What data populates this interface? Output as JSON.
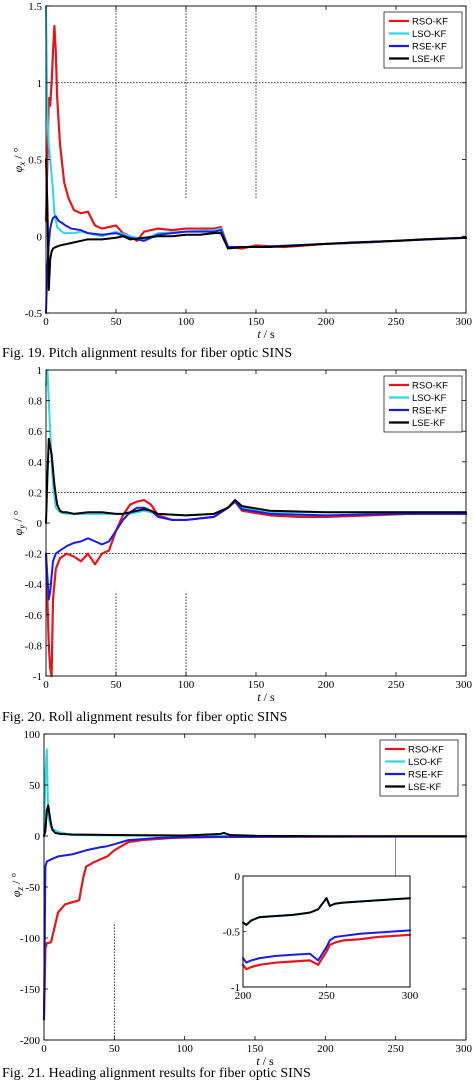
{
  "captions": [
    "Fig. 19. Pitch alignment results for fiber optic SINS",
    "Fig. 20. Roll alignment results for fiber optic SINS",
    "Fig. 21. Heading alignment results for fiber optic SINS"
  ],
  "colors": {
    "RSO-KF": "#e8141c",
    "LSO-KF": "#2fd8e8",
    "RSE-KF": "#1c1ce0",
    "LSE-KF": "#000000"
  },
  "chart_data": [
    {
      "type": "line",
      "title": "",
      "xlabel": "t",
      "xunit": "s",
      "ylabel": "φx",
      "yunit": "°",
      "xlim": [
        0,
        300
      ],
      "ylim": [
        -0.5,
        1.5
      ],
      "xticks": [
        "0",
        "50",
        "100",
        "150",
        "200",
        "250",
        "300"
      ],
      "yticks": [
        "-0.5",
        "0",
        "0.5",
        "1",
        "1.5"
      ],
      "legend_position": "top-right",
      "reference_lines": [
        {
          "orientation": "horizontal",
          "value": 1
        },
        {
          "orientation": "vertical",
          "value": 50,
          "range": [
            0.25,
            1.5
          ]
        },
        {
          "orientation": "vertical",
          "value": 100,
          "range": [
            0.25,
            1.5
          ]
        },
        {
          "orientation": "vertical",
          "value": 150,
          "range": [
            0.25,
            1.5
          ]
        }
      ],
      "series": [
        {
          "name": "RSO-KF",
          "x": [
            0,
            1,
            2,
            3,
            4,
            5,
            6,
            7,
            8,
            10,
            13,
            16,
            20,
            25,
            30,
            35,
            40,
            50,
            55,
            60,
            65,
            70,
            80,
            90,
            100,
            110,
            120,
            125,
            130,
            140,
            150,
            170,
            200,
            230,
            250,
            270,
            300
          ],
          "y": [
            0.1,
            0.5,
            0.9,
            0.85,
            1.0,
            1.2,
            1.37,
            1.2,
            0.9,
            0.6,
            0.35,
            0.25,
            0.17,
            0.15,
            0.16,
            0.07,
            0.05,
            0.07,
            0.02,
            0.0,
            -0.03,
            0.03,
            0.05,
            0.04,
            0.05,
            0.05,
            0.05,
            0.06,
            -0.07,
            -0.08,
            -0.06,
            -0.07,
            -0.05,
            -0.04,
            -0.03,
            -0.02,
            -0.01
          ]
        },
        {
          "name": "LSO-KF",
          "x": [
            0,
            1,
            2,
            3,
            4,
            5,
            6,
            8,
            10,
            13,
            16,
            20,
            25,
            30,
            40,
            50,
            60,
            70,
            80,
            100,
            120,
            125,
            130,
            150,
            200,
            250,
            300
          ],
          "y": [
            1.5,
            0.8,
            0.6,
            0.5,
            0.4,
            0.3,
            0.15,
            0.06,
            0.04,
            0.02,
            0.02,
            0.02,
            0.03,
            0.02,
            0.0,
            0.03,
            0.0,
            -0.02,
            0.02,
            0.03,
            0.04,
            0.05,
            -0.07,
            -0.07,
            -0.05,
            -0.03,
            -0.01
          ]
        },
        {
          "name": "RSE-KF",
          "x": [
            0,
            1,
            2,
            3,
            4,
            5,
            7,
            9,
            11,
            14,
            18,
            25,
            30,
            40,
            50,
            60,
            70,
            80,
            100,
            120,
            125,
            130,
            150,
            200,
            250,
            300
          ],
          "y": [
            -0.5,
            -0.2,
            -0.05,
            0.05,
            0.09,
            0.12,
            0.13,
            0.1,
            0.09,
            0.07,
            0.05,
            0.04,
            0.02,
            0.01,
            0.02,
            -0.01,
            -0.03,
            0.01,
            0.03,
            0.03,
            0.04,
            -0.07,
            -0.07,
            -0.05,
            -0.03,
            -0.01
          ]
        },
        {
          "name": "LSE-KF",
          "x": [
            0,
            1,
            2,
            3,
            4,
            5,
            7,
            10,
            15,
            20,
            30,
            40,
            50,
            55,
            60,
            70,
            80,
            90,
            100,
            110,
            120,
            125,
            130,
            140,
            160,
            180,
            200,
            220,
            250,
            270,
            300
          ],
          "y": [
            0.5,
            0.2,
            -0.35,
            -0.15,
            -0.1,
            -0.08,
            -0.07,
            -0.06,
            -0.05,
            -0.04,
            -0.02,
            -0.02,
            -0.01,
            0.0,
            -0.02,
            -0.01,
            0.0,
            0.0,
            0.01,
            0.01,
            0.02,
            0.02,
            -0.08,
            -0.07,
            -0.07,
            -0.06,
            -0.05,
            -0.04,
            -0.03,
            -0.02,
            -0.01
          ]
        }
      ]
    },
    {
      "type": "line",
      "title": "",
      "xlabel": "t",
      "xunit": "s",
      "ylabel": "φy",
      "yunit": "°",
      "xlim": [
        0,
        300
      ],
      "ylim": [
        -1,
        1
      ],
      "xticks": [
        "0",
        "50",
        "100",
        "150",
        "200",
        "250",
        "300"
      ],
      "yticks": [
        "-1",
        "-0.8",
        "-0.6",
        "-0.4",
        "-0.2",
        "0",
        "0.2",
        "0.4",
        "0.6",
        "0.8",
        "1"
      ],
      "legend_position": "top-right",
      "reference_lines": [
        {
          "orientation": "horizontal",
          "value": 0.2
        },
        {
          "orientation": "horizontal",
          "value": -0.2
        },
        {
          "orientation": "vertical",
          "value": 50,
          "range": [
            -1,
            -0.45
          ]
        },
        {
          "orientation": "vertical",
          "value": 100,
          "range": [
            -1,
            -0.45
          ]
        }
      ],
      "series": [
        {
          "name": "RSO-KF",
          "x": [
            0,
            1,
            2,
            3,
            4,
            5,
            7,
            10,
            15,
            20,
            25,
            30,
            35,
            40,
            45,
            50,
            55,
            60,
            65,
            70,
            75,
            80,
            90,
            100,
            110,
            120,
            130,
            135,
            140,
            160,
            180,
            200,
            230,
            260,
            300
          ],
          "y": [
            -0.2,
            -0.5,
            -0.8,
            -0.95,
            -1.0,
            -0.5,
            -0.3,
            -0.23,
            -0.2,
            -0.22,
            -0.25,
            -0.2,
            -0.27,
            -0.2,
            -0.18,
            -0.05,
            0.05,
            0.12,
            0.14,
            0.15,
            0.12,
            0.05,
            0.02,
            0.02,
            0.03,
            0.04,
            0.1,
            0.14,
            0.08,
            0.05,
            0.04,
            0.04,
            0.05,
            0.06,
            0.06
          ]
        },
        {
          "name": "LSO-KF",
          "x": [
            0,
            1,
            2,
            3,
            4,
            5,
            7,
            10,
            15,
            20,
            30,
            40,
            50,
            60,
            70,
            80,
            100,
            120,
            130,
            135,
            140,
            160,
            200,
            250,
            300
          ],
          "y": [
            0.9,
            1.0,
            0.8,
            0.6,
            0.4,
            0.25,
            0.1,
            0.07,
            0.06,
            0.06,
            0.06,
            0.06,
            0.06,
            0.06,
            0.08,
            0.06,
            0.05,
            0.06,
            0.1,
            0.14,
            0.1,
            0.07,
            0.07,
            0.07,
            0.07
          ]
        },
        {
          "name": "RSE-KF",
          "x": [
            0,
            1,
            2,
            3,
            4,
            5,
            7,
            10,
            15,
            20,
            25,
            30,
            35,
            40,
            45,
            50,
            55,
            60,
            65,
            70,
            75,
            80,
            90,
            100,
            110,
            120,
            130,
            135,
            140,
            160,
            200,
            250,
            300
          ],
          "y": [
            -0.2,
            -0.35,
            -0.5,
            -0.45,
            -0.35,
            -0.25,
            -0.2,
            -0.18,
            -0.15,
            -0.13,
            -0.12,
            -0.1,
            -0.12,
            -0.14,
            -0.12,
            -0.05,
            0.02,
            0.07,
            0.1,
            0.1,
            0.08,
            0.04,
            0.02,
            0.02,
            0.03,
            0.04,
            0.1,
            0.14,
            0.09,
            0.06,
            0.05,
            0.06,
            0.06
          ]
        },
        {
          "name": "LSE-KF",
          "x": [
            0,
            1,
            2,
            3,
            4,
            5,
            6,
            7,
            8,
            10,
            12,
            15,
            20,
            30,
            40,
            50,
            55,
            60,
            65,
            70,
            75,
            80,
            100,
            120,
            130,
            135,
            140,
            160,
            200,
            250,
            300
          ],
          "y": [
            0.0,
            0.3,
            0.55,
            0.5,
            0.45,
            0.35,
            0.25,
            0.18,
            0.12,
            0.08,
            0.07,
            0.07,
            0.06,
            0.07,
            0.07,
            0.06,
            0.06,
            0.07,
            0.08,
            0.09,
            0.08,
            0.06,
            0.05,
            0.06,
            0.1,
            0.15,
            0.11,
            0.08,
            0.07,
            0.07,
            0.07
          ]
        }
      ]
    },
    {
      "type": "line",
      "title": "",
      "xlabel": "t",
      "xunit": "s",
      "ylabel": "φz",
      "yunit": "°",
      "xlim": [
        0,
        300
      ],
      "ylim": [
        -200,
        100
      ],
      "xticks": [
        "0",
        "50",
        "100",
        "150",
        "200",
        "250",
        "300"
      ],
      "yticks": [
        "-200",
        "-150",
        "-100",
        "-50",
        "0",
        "50",
        "100"
      ],
      "legend_position": "top-right",
      "reference_lines": [
        {
          "orientation": "vertical",
          "value": 50,
          "range": [
            -200,
            -85
          ]
        }
      ],
      "series": [
        {
          "name": "RSO-KF",
          "x": [
            0,
            1,
            2,
            3,
            5,
            10,
            15,
            20,
            25,
            28,
            30,
            35,
            45,
            50,
            55,
            60,
            70,
            80,
            90,
            100,
            120,
            150,
            200,
            250,
            300
          ],
          "y": [
            -180,
            -110,
            -105,
            -105,
            -104,
            -75,
            -67,
            -65,
            -63,
            -40,
            -30,
            -26,
            -20,
            -14,
            -10,
            -6,
            -4,
            -3,
            -2,
            -1.5,
            -1,
            -0.8,
            -0.6,
            -0.55,
            -0.5
          ]
        },
        {
          "name": "LSO-KF",
          "x": [
            0,
            1,
            2,
            3,
            5,
            10,
            20,
            50,
            100,
            150,
            200,
            250,
            300
          ],
          "y": [
            0,
            60,
            85,
            20,
            8,
            4,
            1,
            0.5,
            0.3,
            0.2,
            -0.3,
            -0.25,
            -0.2
          ]
        },
        {
          "name": "RSE-KF",
          "x": [
            0,
            1,
            2,
            5,
            10,
            20,
            30,
            40,
            45,
            50,
            55,
            60,
            70,
            80,
            100,
            120,
            150,
            200,
            250,
            300
          ],
          "y": [
            -180,
            -30,
            -25,
            -23,
            -20,
            -18,
            -14,
            -11,
            -10,
            -8,
            -6,
            -4,
            -3,
            -2,
            -1.2,
            -0.9,
            -0.7,
            -0.55,
            -0.5,
            -0.45
          ]
        },
        {
          "name": "LSE-KF",
          "x": [
            0,
            1,
            2,
            3,
            4,
            5,
            6,
            8,
            12,
            20,
            50,
            100,
            125,
            128,
            132,
            150,
            200,
            250,
            300
          ],
          "y": [
            0,
            5,
            25,
            30,
            20,
            12,
            6,
            3,
            2,
            1.5,
            1,
            0.5,
            2,
            3,
            1,
            0.2,
            -0.3,
            -0.25,
            -0.2
          ]
        }
      ],
      "inset": {
        "xlim": [
          200,
          300
        ],
        "ylim": [
          -1,
          0
        ],
        "xticks": [
          "200",
          "250",
          "300"
        ],
        "yticks": [
          "-1",
          "-0.5",
          "0"
        ],
        "connector_x": 250,
        "series": [
          {
            "name": "RSO-KF",
            "x": [
              200,
              202,
              205,
              210,
              220,
              230,
              240,
              245,
              250,
              252,
              255,
              260,
              270,
              280,
              290,
              300
            ],
            "y": [
              -0.8,
              -0.84,
              -0.82,
              -0.8,
              -0.78,
              -0.77,
              -0.76,
              -0.8,
              -0.68,
              -0.62,
              -0.6,
              -0.58,
              -0.57,
              -0.55,
              -0.54,
              -0.53
            ]
          },
          {
            "name": "RSE-KF",
            "x": [
              200,
              202,
              205,
              210,
              220,
              230,
              240,
              245,
              250,
              252,
              255,
              260,
              270,
              280,
              290,
              300
            ],
            "y": [
              -0.74,
              -0.78,
              -0.76,
              -0.74,
              -0.72,
              -0.71,
              -0.7,
              -0.76,
              -0.64,
              -0.58,
              -0.55,
              -0.54,
              -0.52,
              -0.51,
              -0.5,
              -0.49
            ]
          },
          {
            "name": "LSO-KF",
            "x": [
              200,
              202,
              205,
              210,
              220,
              230,
              240,
              245,
              250,
              252,
              255,
              260,
              270,
              280,
              290,
              300
            ],
            "y": [
              -0.42,
              -0.44,
              -0.4,
              -0.37,
              -0.36,
              -0.35,
              -0.33,
              -0.3,
              -0.2,
              -0.27,
              -0.25,
              -0.24,
              -0.23,
              -0.22,
              -0.21,
              -0.2
            ]
          },
          {
            "name": "LSE-KF",
            "x": [
              200,
              202,
              205,
              210,
              220,
              230,
              240,
              245,
              250,
              252,
              255,
              260,
              270,
              280,
              290,
              300
            ],
            "y": [
              -0.42,
              -0.44,
              -0.4,
              -0.37,
              -0.36,
              -0.35,
              -0.33,
              -0.3,
              -0.2,
              -0.27,
              -0.25,
              -0.24,
              -0.23,
              -0.22,
              -0.21,
              -0.2
            ]
          }
        ]
      }
    }
  ]
}
